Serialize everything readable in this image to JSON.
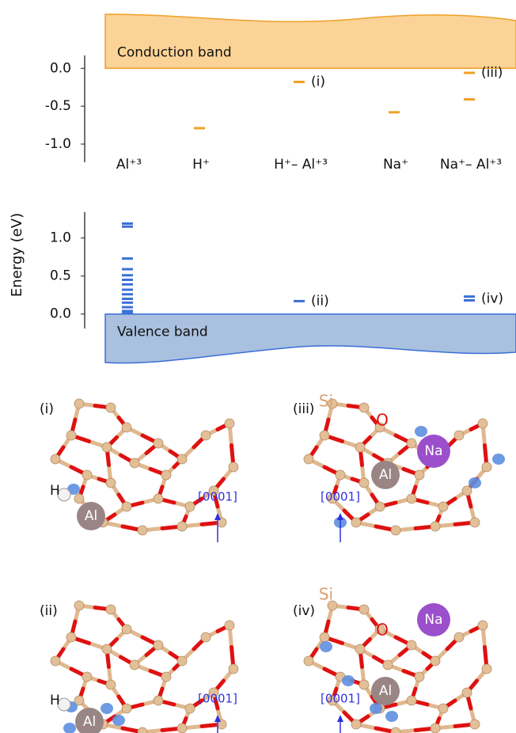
{
  "chart_data": [
    {
      "type": "level",
      "categories": [
        "Al⁺³",
        "H⁺",
        "H⁺– Al⁺³",
        "Na⁺",
        "Na⁺– Al⁺³"
      ],
      "levels": [
        [],
        [
          -0.79
        ],
        [
          -0.18
        ],
        [
          -0.58
        ],
        [
          -0.06,
          -0.41
        ]
      ],
      "level_labels": [
        [],
        [
          null
        ],
        [
          "(i)"
        ],
        [
          null
        ],
        [
          "(iii)",
          null
        ]
      ],
      "color": "#f0a028",
      "band_label": "Conduction band",
      "band_color": "#fbd396",
      "ylim": [
        -1.24,
        0.17
      ],
      "yticks": [
        {
          "value": 0,
          "label": "0.0"
        },
        -0.5,
        {
          "value": -1,
          "label": "-1.0"
        }
      ]
    },
    {
      "type": "level",
      "ylabel": "Energy (eV)",
      "levels": [
        [
          1.19,
          1.15,
          0.73,
          0.59,
          0.51,
          0.45,
          0.39,
          0.32,
          0.26,
          0.2,
          0.15,
          0.09,
          0.04,
          0.01
        ],
        [],
        [
          0.17
        ],
        [],
        [
          0.23,
          0.18
        ]
      ],
      "level_labels": [
        [
          null,
          null,
          null,
          null,
          null,
          null,
          null,
          null,
          null,
          null,
          null,
          null,
          null,
          null
        ],
        [],
        [
          "(ii)"
        ],
        [],
        [
          "(iv)",
          null
        ]
      ],
      "color": "#3b6fd8",
      "band_label": "Valence band",
      "band_color": "#a9c0de",
      "ylim": [
        -0.19,
        1.34
      ],
      "yticks": [
        {
          "value": 0,
          "label": "0.0"
        },
        0.5,
        {
          "value": 1,
          "label": "1.0"
        }
      ]
    }
  ],
  "panels": [
    {
      "label": "(i)",
      "atom_labels": [
        "H",
        "Al"
      ],
      "axis_label": "[0001]"
    },
    {
      "label": "(iii)",
      "atom_labels": [
        "Si",
        "O",
        "Na",
        "Al"
      ],
      "axis_label": "[0001]"
    },
    {
      "label": "(ii)",
      "atom_labels": [
        "H",
        "Al"
      ],
      "axis_label": "[0001]"
    },
    {
      "label": "(iv)",
      "atom_labels": [
        "Si",
        "O",
        "Na",
        "Al"
      ],
      "axis_label": "[0001]"
    }
  ]
}
